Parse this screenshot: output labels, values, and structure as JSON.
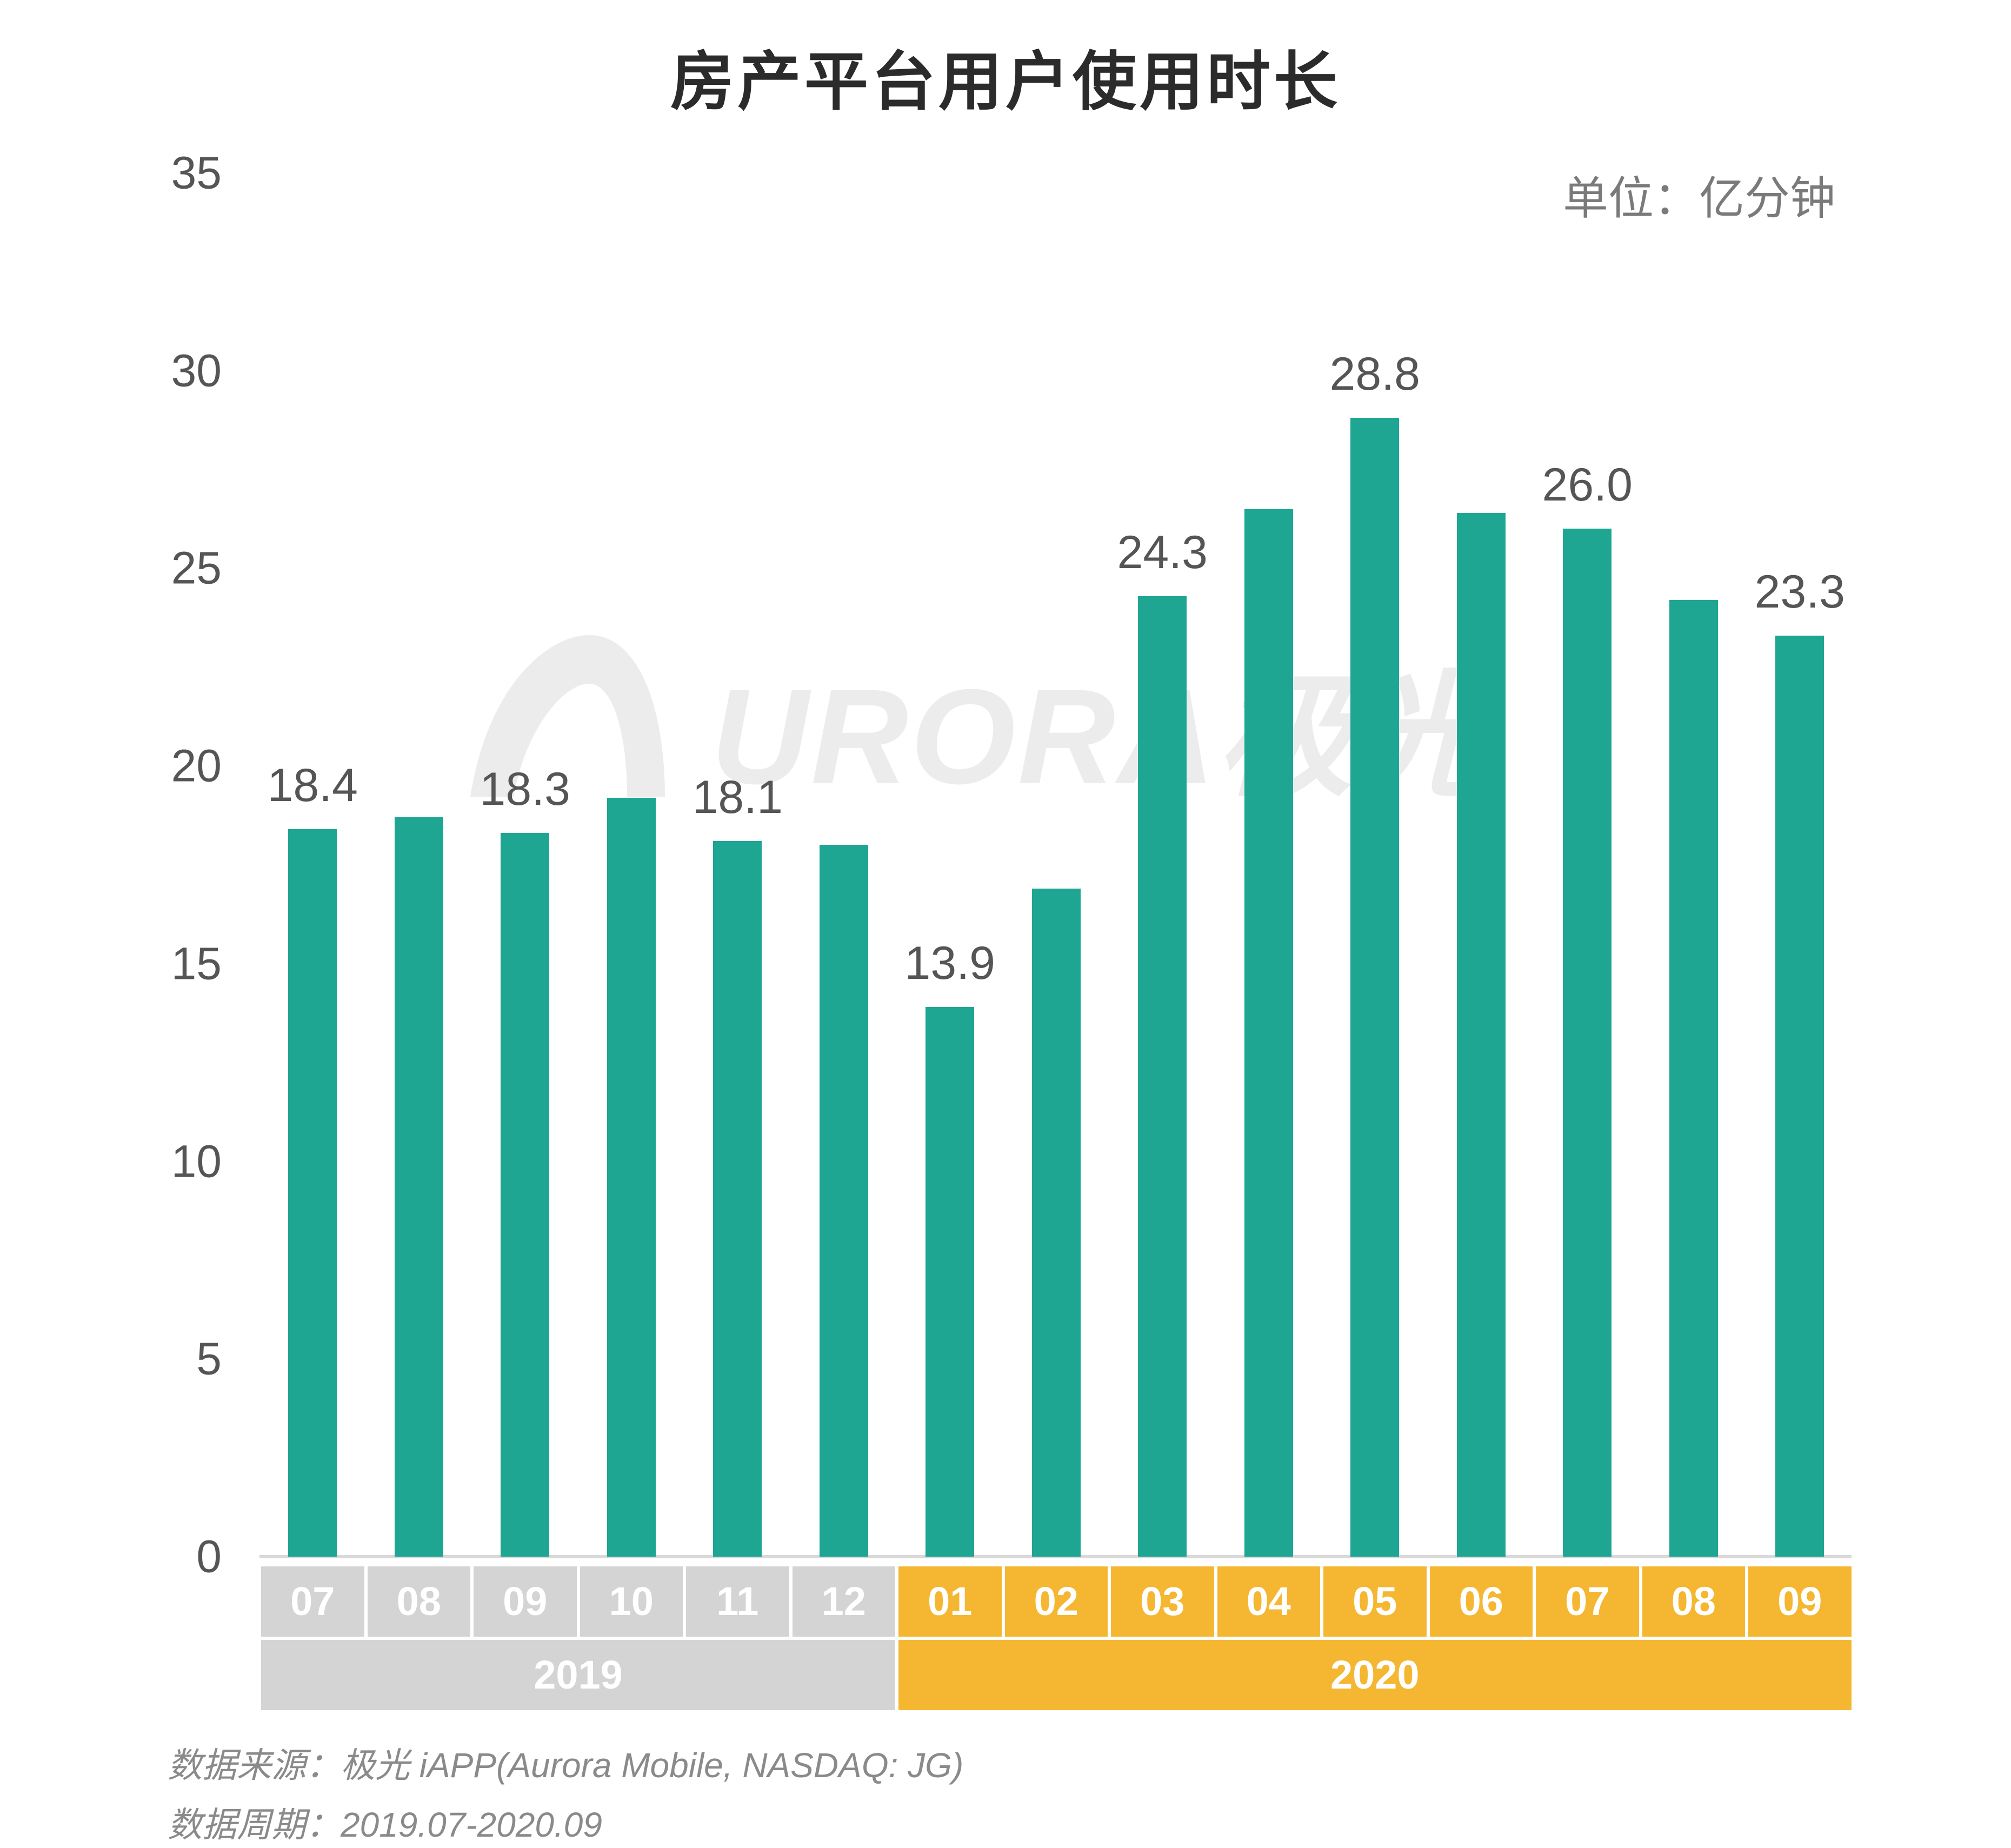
{
  "title": "房产平台用户使用时长",
  "unit": "单位：亿分钟",
  "watermark": "URORA极光",
  "chart_data": {
    "type": "bar",
    "title": "房产平台用户使用时长",
    "ylabel": "单位：亿分钟",
    "ylim": [
      0,
      35
    ],
    "yticks": [
      0,
      5,
      10,
      15,
      20,
      25,
      30,
      35
    ],
    "categories": [
      "07",
      "08",
      "09",
      "10",
      "11",
      "12",
      "01",
      "02",
      "03",
      "04",
      "05",
      "06",
      "07",
      "08",
      "09"
    ],
    "values": [
      18.4,
      18.7,
      18.3,
      19.2,
      18.1,
      18.0,
      13.9,
      16.9,
      24.3,
      26.5,
      28.8,
      26.4,
      26.0,
      24.2,
      23.3
    ],
    "labels": [
      "18.4",
      "",
      "18.3",
      "",
      "18.1",
      "",
      "13.9",
      "",
      "24.3",
      "",
      "28.8",
      "",
      "26.0",
      "",
      "23.3"
    ],
    "years": [
      {
        "label": "2019",
        "count": 6,
        "color": "#d4d4d4"
      },
      {
        "label": "2020",
        "count": 9,
        "color": "#f5b731"
      }
    ],
    "bar_color": "#1ea693"
  },
  "footer": {
    "source": "数据来源：极光 iAPP(Aurora Mobile, NASDAQ: JG)",
    "period": "数据周期：2019.07-2020.09"
  }
}
